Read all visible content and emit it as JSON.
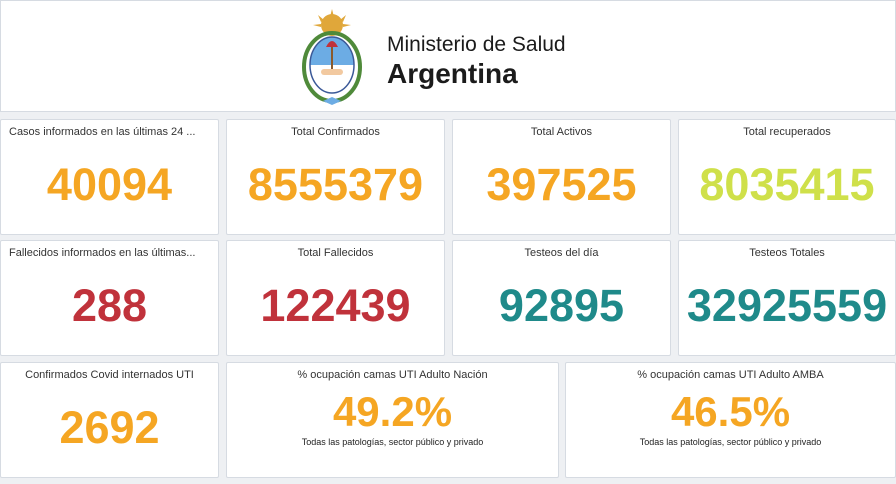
{
  "header": {
    "org_line1": "Ministerio de Salud",
    "org_line2": "Argentina",
    "logo": "escudo-argentina-icon"
  },
  "metrics": [
    {
      "label": "Casos informados en las últimas 24 ...",
      "value": "40094",
      "color": "#f5a623"
    },
    {
      "label": "Total Confirmados",
      "value": "8555379",
      "color": "#f5a623"
    },
    {
      "label": "Total Activos",
      "value": "397525",
      "color": "#f5a623"
    },
    {
      "label": "Total recuperados",
      "value": "8035415",
      "color": "#cfe04a"
    },
    {
      "label": "Fallecidos informados en las últimas...",
      "value": "288",
      "color": "#c0323b"
    },
    {
      "label": "Total Fallecidos",
      "value": "122439",
      "color": "#c0323b"
    },
    {
      "label": "Testeos del día",
      "value": "92895",
      "color": "#1f8a8a"
    },
    {
      "label": "Testeos Totales",
      "value": "32925559",
      "color": "#1f8a8a"
    },
    {
      "label": "Confirmados Covid internados UTI",
      "value": "2692",
      "color": "#f5a623"
    },
    {
      "label": "% ocupación camas UTI Adulto Nación",
      "value": "49.2%",
      "note": "Todas las patologías, sector público y privado",
      "color": "#f5a623"
    },
    {
      "label": "% ocupación camas UTI Adulto AMBA",
      "value": "46.5%",
      "note": "Todas las patologías, sector público y privado",
      "color": "#f5a623"
    }
  ]
}
